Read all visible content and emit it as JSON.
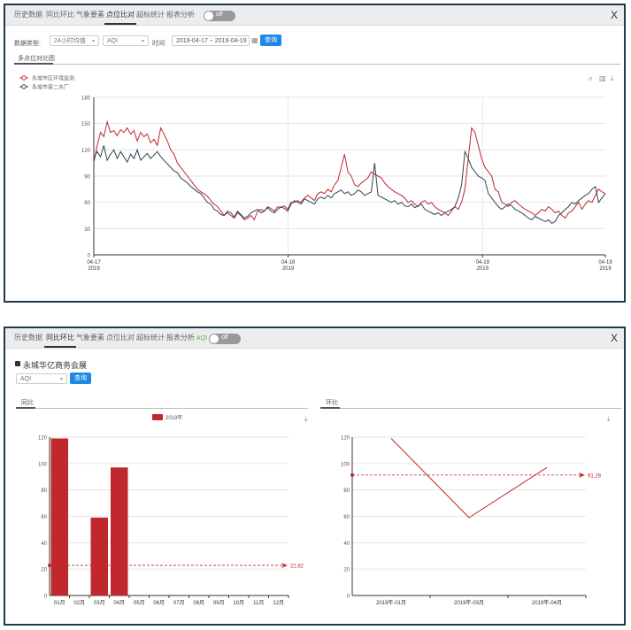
{
  "tabs": [
    "历史数据",
    "同比环比",
    "气象要素",
    "点位比对",
    "超标统计",
    "报表分析"
  ],
  "close_label": "X",
  "panel1": {
    "active_tab": 3,
    "toggle_label": "off",
    "filter": {
      "data_type_label": "数据类型:",
      "data_type_value": "24小时均值",
      "pollutant_value": "AQI",
      "time_label": "时间:",
      "date_range": "2019-04-17 ~ 2019-04-19",
      "query_label": "查询"
    },
    "subtab": "多点位对比图",
    "legend": [
      "永城市区环境监测",
      "永城市第二水厂"
    ],
    "colors": {
      "series1": "#c0282d",
      "series2": "#2f4554"
    },
    "icons": [
      "line-chart-icon",
      "bar-chart-icon",
      "download-icon"
    ]
  },
  "panel2": {
    "active_tab": 1,
    "toggle_left": "AQI",
    "toggle_label": "off",
    "title": "永城华亿商务会展",
    "pollutant_value": "AQI",
    "query_label": "查询",
    "left_subtab": "同比",
    "right_subtab": "环比",
    "color": "#c0282d"
  },
  "chart_data": [
    {
      "type": "line",
      "x_ticks": [
        {
          "value": "04-17",
          "sub": "2019"
        },
        {
          "value": "04-18",
          "sub": "2019"
        },
        {
          "value": "04-19",
          "sub": "2019"
        },
        {
          "value": "04-19",
          "sub": "2019"
        }
      ],
      "ylim": [
        0,
        180
      ],
      "yticks": [
        0,
        30,
        60,
        90,
        120,
        150,
        180
      ],
      "grid": true,
      "legend_position": "top-left",
      "series": [
        {
          "name": "永城市区环境监测",
          "values": [
            105,
            125,
            140,
            135,
            152,
            140,
            142,
            136,
            143,
            140,
            145,
            138,
            142,
            130,
            140,
            135,
            138,
            128,
            132,
            125,
            145,
            138,
            130,
            120,
            115,
            105,
            100,
            95,
            90,
            85,
            80,
            75,
            72,
            70,
            67,
            62,
            58,
            55,
            50,
            45,
            48,
            45,
            42,
            48,
            45,
            40,
            42,
            45,
            40,
            50,
            52,
            50,
            55,
            53,
            50,
            55,
            54,
            56,
            52,
            60,
            60,
            62,
            60,
            65,
            68,
            65,
            62,
            70,
            72,
            70,
            75,
            72,
            80,
            85,
            100,
            115,
            95,
            90,
            80,
            78,
            82,
            85,
            88,
            95,
            92,
            90,
            88,
            82,
            78,
            75,
            72,
            70,
            68,
            65,
            60,
            62,
            58,
            55,
            60,
            62,
            58,
            60,
            55,
            52,
            50,
            48,
            45,
            50,
            55,
            52,
            60,
            75,
            110,
            145,
            140,
            125,
            110,
            100,
            95,
            90,
            75,
            72,
            60,
            58,
            55,
            60,
            62,
            58,
            55,
            52,
            50,
            48,
            45,
            48,
            52,
            50,
            55,
            52,
            48,
            50,
            45,
            42,
            48,
            50,
            55,
            60,
            52,
            58,
            62,
            60,
            68,
            75,
            72,
            70
          ]
        },
        {
          "name": "永城市第二水厂",
          "values": [
            110,
            118,
            112,
            125,
            108,
            115,
            120,
            110,
            118,
            112,
            106,
            115,
            110,
            120,
            108,
            112,
            116,
            110,
            114,
            118,
            112,
            108,
            104,
            100,
            96,
            94,
            88,
            85,
            82,
            78,
            75,
            72,
            70,
            65,
            60,
            58,
            52,
            50,
            46,
            45,
            50,
            48,
            43,
            50,
            46,
            42,
            44,
            48,
            50,
            52,
            48,
            50,
            54,
            50,
            48,
            52,
            55,
            53,
            50,
            58,
            62,
            60,
            58,
            64,
            62,
            60,
            58,
            64,
            66,
            64,
            68,
            65,
            70,
            72,
            74,
            70,
            72,
            68,
            70,
            74,
            72,
            68,
            70,
            72,
            105,
            68,
            66,
            64,
            62,
            60,
            62,
            58,
            60,
            56,
            55,
            58,
            54,
            56,
            58,
            52,
            50,
            48,
            46,
            48,
            45,
            48,
            50,
            52,
            55,
            65,
            80,
            118,
            110,
            100,
            95,
            90,
            88,
            85,
            70,
            65,
            60,
            55,
            52,
            55,
            58,
            56,
            52,
            50,
            48,
            45,
            42,
            40,
            44,
            42,
            40,
            38,
            40,
            36,
            38,
            45,
            48,
            52,
            55,
            60,
            58,
            62,
            65,
            68,
            70,
            75,
            78,
            60,
            65,
            70
          ]
        }
      ]
    },
    {
      "type": "bar",
      "categories": [
        "01月",
        "02月",
        "03月",
        "04月",
        "05月",
        "06月",
        "07月",
        "08月",
        "09月",
        "10月",
        "11月",
        "12月"
      ],
      "series": [
        {
          "name": "2019年",
          "values": [
            119,
            null,
            59,
            97,
            null,
            null,
            null,
            null,
            null,
            null,
            null,
            null
          ]
        }
      ],
      "ylim": [
        0,
        120
      ],
      "yticks": [
        0,
        20,
        40,
        60,
        80,
        100,
        120
      ],
      "markline": 22.82,
      "markline_label": "22.82",
      "grid": true,
      "legend_position": "top-center"
    },
    {
      "type": "line",
      "categories": [
        "2019年-01月",
        "2019年-03月",
        "2019年-04月"
      ],
      "series": [
        {
          "values": [
            119,
            59,
            97
          ]
        }
      ],
      "ylim": [
        0,
        120
      ],
      "yticks": [
        0,
        20,
        40,
        60,
        80,
        100,
        120
      ],
      "markline": 91.28,
      "markline_label": "91.28",
      "grid": true
    }
  ]
}
